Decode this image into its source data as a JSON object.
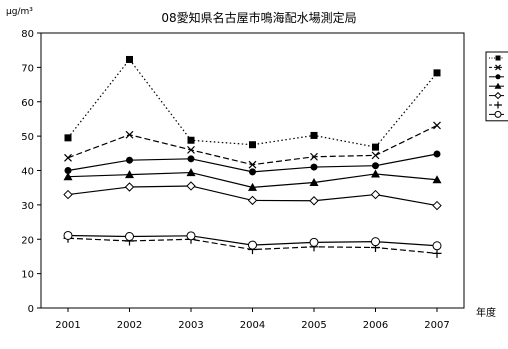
{
  "chart_data": {
    "type": "line",
    "title": "08愛知県名古屋市鳴海配水場測定局",
    "ylabel": "μg/m³",
    "xlabel": "年度",
    "ylim": [
      0,
      80
    ],
    "yticks": [
      0,
      10,
      20,
      30,
      40,
      50,
      60,
      70,
      80
    ],
    "categories": [
      "2001",
      "2002",
      "2003",
      "2004",
      "2005",
      "2006",
      "2007"
    ],
    "grid": false,
    "legend_position": "right",
    "series": [
      {
        "marker": "square-filled",
        "line": "dotted",
        "values": [
          49.5,
          72.3,
          48.8,
          47.5,
          50.2,
          46.8,
          68.4
        ]
      },
      {
        "marker": "x",
        "line": "dashed",
        "values": [
          43.7,
          50.4,
          46.0,
          41.7,
          44.0,
          44.4,
          53.1
        ]
      },
      {
        "marker": "circle-filled",
        "line": "solid",
        "values": [
          40.0,
          43.0,
          43.4,
          39.6,
          41.0,
          41.4,
          44.8
        ]
      },
      {
        "marker": "triangle-filled",
        "line": "solid",
        "values": [
          38.2,
          38.8,
          39.4,
          35.1,
          36.5,
          39.0,
          37.3
        ]
      },
      {
        "marker": "diamond-open",
        "line": "solid",
        "values": [
          33.0,
          35.2,
          35.5,
          31.3,
          31.2,
          33.0,
          29.8
        ]
      },
      {
        "marker": "plus",
        "line": "dashed",
        "values": [
          20.3,
          19.5,
          20.0,
          17.0,
          17.8,
          17.6,
          15.9
        ]
      },
      {
        "marker": "circle-open",
        "line": "solid",
        "values": [
          21.1,
          20.8,
          21.0,
          18.3,
          19.1,
          19.3,
          18.1
        ]
      }
    ]
  }
}
